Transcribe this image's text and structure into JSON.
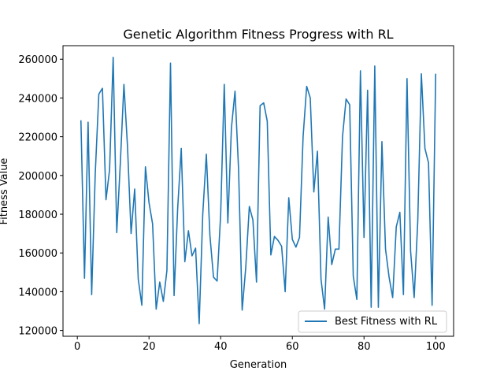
{
  "chart_data": {
    "type": "line",
    "title": "Genetic Algorithm Fitness Progress with RL",
    "xlabel": "Generation",
    "ylabel": "Fitness Value",
    "xlim": [
      -4,
      105
    ],
    "ylim": [
      117000,
      267000
    ],
    "xticks": [
      0,
      20,
      40,
      60,
      80,
      100
    ],
    "yticks": [
      120000,
      140000,
      160000,
      180000,
      200000,
      220000,
      240000,
      260000
    ],
    "xtick_labels": [
      "0",
      "20",
      "40",
      "60",
      "80",
      "100"
    ],
    "ytick_labels": [
      "120000",
      "140000",
      "160000",
      "180000",
      "200000",
      "220000",
      "240000",
      "260000"
    ],
    "grid": false,
    "legend_position": "lower-right",
    "line_color": "#1f77b4",
    "series": [
      {
        "name": "Best Fitness with RL",
        "x": [
          1,
          2,
          3,
          4,
          5,
          6,
          7,
          8,
          9,
          10,
          11,
          12,
          13,
          14,
          15,
          16,
          17,
          18,
          19,
          20,
          21,
          22,
          23,
          24,
          25,
          26,
          27,
          28,
          29,
          30,
          31,
          32,
          33,
          34,
          35,
          36,
          37,
          38,
          39,
          40,
          41,
          42,
          43,
          44,
          45,
          46,
          47,
          48,
          49,
          50,
          51,
          52,
          53,
          54,
          55,
          56,
          57,
          58,
          59,
          60,
          61,
          62,
          63,
          64,
          65,
          66,
          67,
          68,
          69,
          70,
          71,
          72,
          73,
          74,
          75,
          76,
          77,
          78,
          79,
          80,
          81,
          82,
          83,
          84,
          85,
          86,
          87,
          88,
          89,
          90,
          91,
          92,
          93,
          94,
          95,
          96,
          97,
          98,
          99,
          100
        ],
        "y": [
          228500,
          147000,
          227500,
          138500,
          201000,
          242000,
          245000,
          187500,
          203000,
          261000,
          170500,
          206500,
          247000,
          215000,
          170000,
          193000,
          146500,
          133000,
          204500,
          186000,
          175000,
          131000,
          145000,
          135000,
          151000,
          258000,
          138000,
          183000,
          214000,
          155500,
          171500,
          158500,
          162500,
          123500,
          180000,
          211000,
          169000,
          147500,
          145500,
          180000,
          247000,
          175500,
          224500,
          243500,
          203000,
          130500,
          152500,
          184000,
          177000,
          145000,
          236000,
          237500,
          228000,
          159000,
          168500,
          166500,
          163500,
          140000,
          188500,
          167000,
          163000,
          168000,
          220000,
          246000,
          240000,
          191500,
          212500,
          146500,
          131000,
          178500,
          154000,
          162000,
          162000,
          220000,
          239500,
          236500,
          148000,
          136000,
          254000,
          168000,
          244000,
          132000,
          256500,
          132000,
          217500,
          162000,
          147500,
          137000,
          173500,
          181000,
          138500,
          250000,
          161000,
          137000,
          176500,
          252500,
          214000,
          206500,
          133000,
          252500
        ]
      }
    ]
  }
}
